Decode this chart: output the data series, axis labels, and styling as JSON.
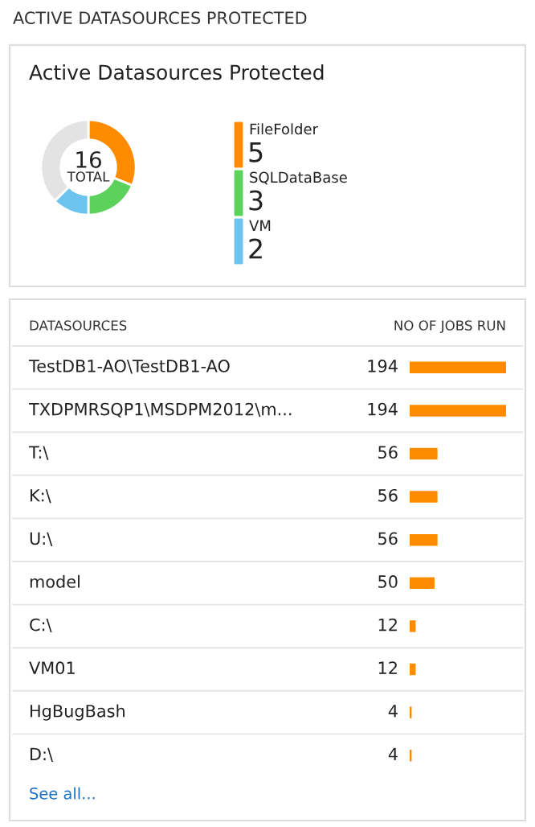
{
  "chart_data": [
    {
      "type": "donut",
      "title": "Active Datasources Protected",
      "subtitle": "ACTIVE DATASOURCES PROTECTED",
      "categories": [
        "FileFolder",
        "SQLDataBase",
        "VM",
        null
      ],
      "values": [
        5,
        3,
        2,
        6
      ],
      "colors": [
        "#ff8c00",
        "#5cd25c",
        "#6cc4ee",
        "#e3e3e3"
      ],
      "value_labels": [
        "5",
        "3",
        "2",
        null
      ],
      "annotations": [
        "16",
        "TOTAL"
      ],
      "legend": "right"
    },
    {
      "type": "bar",
      "orientation": "horizontal",
      "ylabel": "DATASOURCES",
      "xlabel": "NO OF JOBS RUN",
      "categories": [
        "TestDB1-AO\\TestDB1-AO",
        "TXDPMRSQP1\\MSDPM2012\\m...",
        "T:\\",
        "K:\\",
        "U:\\",
        "model",
        "C:\\",
        "VM01",
        "HgBugBash",
        "D:\\"
      ],
      "values": [
        194,
        194,
        56,
        56,
        56,
        50,
        12,
        12,
        4,
        4
      ],
      "color": "#ff8c00",
      "data_labels": true,
      "annotations": [
        "See all..."
      ]
    }
  ]
}
